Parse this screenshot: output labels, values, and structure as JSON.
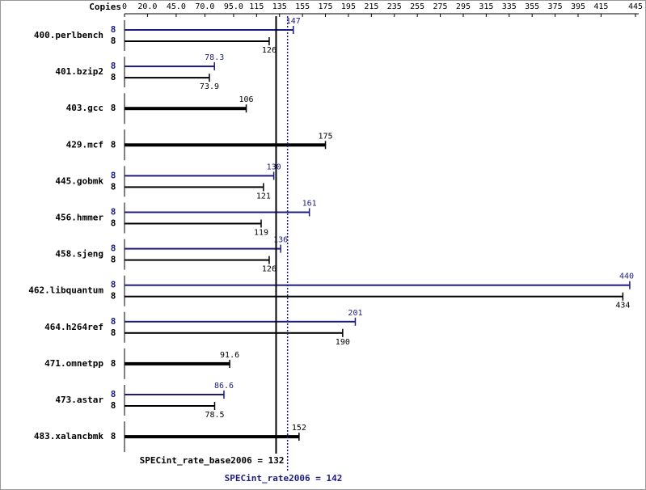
{
  "chart_data": {
    "type": "bar",
    "axis_label": "Copies",
    "categories": [
      "400.perlbench",
      "401.bzip2",
      "403.gcc",
      "429.mcf",
      "445.gobmk",
      "456.hmmer",
      "458.sjeng",
      "462.libquantum",
      "464.h264ref",
      "471.omnetpp",
      "473.astar",
      "483.xalancbmk"
    ],
    "series": [
      {
        "color": "#1c1c80",
        "copies": [
          8,
          8,
          null,
          null,
          8,
          8,
          8,
          8,
          8,
          null,
          8,
          null
        ],
        "values": [
          147,
          78.3,
          null,
          null,
          130,
          161,
          136,
          440,
          201,
          null,
          86.6,
          null
        ]
      },
      {
        "color": "#000000",
        "copies": [
          8,
          8,
          8,
          8,
          8,
          8,
          8,
          8,
          8,
          8,
          8,
          8
        ],
        "values": [
          126,
          73.9,
          106,
          175,
          121,
          119,
          126,
          434,
          190,
          91.6,
          78.5,
          152
        ]
      }
    ],
    "reference_lines": [
      {
        "label": "SPECint_rate_base2006 = 132",
        "value": 132,
        "color": "#000000",
        "style": "solid"
      },
      {
        "label": "SPECint_rate2006 = 142",
        "value": 142,
        "color": "#1c1c80",
        "style": "dotted"
      }
    ],
    "xlim": [
      0,
      445
    ],
    "xticks": [
      0,
      {
        "value": 20,
        "label": "20.0"
      },
      {
        "value": 45,
        "label": "45.0"
      },
      {
        "value": 70,
        "label": "70.0"
      },
      {
        "value": 95,
        "label": "95.0"
      },
      115,
      135,
      155,
      175,
      195,
      215,
      235,
      255,
      275,
      295,
      315,
      335,
      355,
      375,
      395,
      415,
      445
    ]
  }
}
